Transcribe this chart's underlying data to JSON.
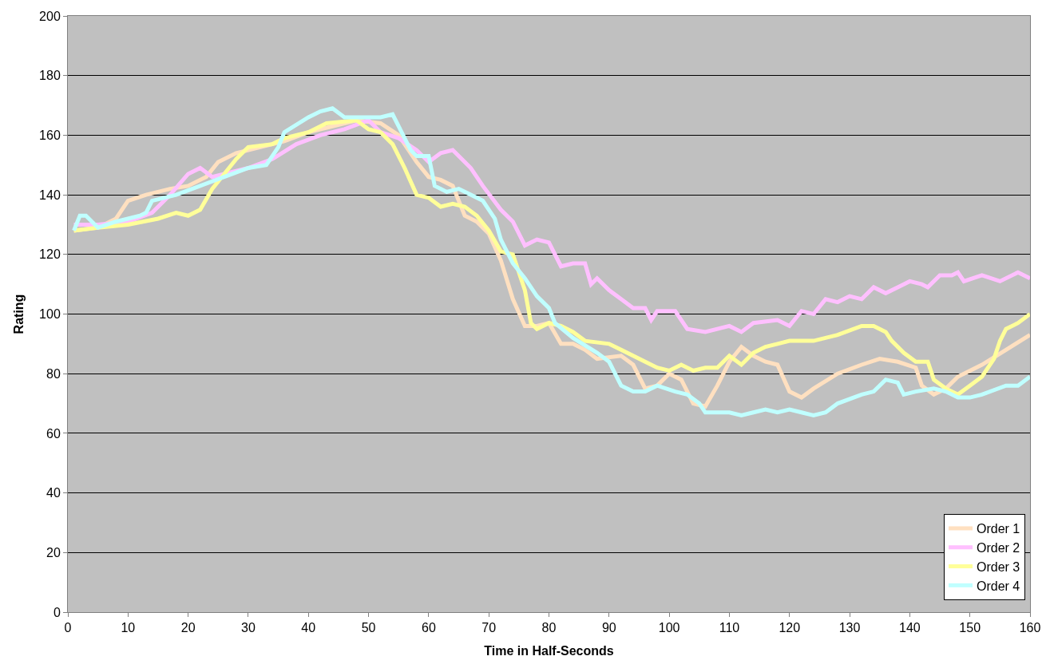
{
  "chart_data": {
    "type": "line",
    "xlabel": "Time in Half-Seconds",
    "ylabel": "Rating",
    "xlim": [
      0,
      160
    ],
    "xticks": [
      0,
      10,
      20,
      30,
      40,
      50,
      60,
      70,
      80,
      90,
      100,
      110,
      120,
      130,
      140,
      150,
      160
    ],
    "ylim": [
      0,
      200
    ],
    "yticks": [
      0,
      20,
      40,
      60,
      80,
      100,
      120,
      140,
      160,
      180,
      200
    ],
    "grid": "y",
    "legend": "bottom right",
    "marker": "none",
    "line_style": "solid",
    "series": [
      {
        "name": "Order 1",
        "color": "#ffe0c0",
        "x": [
          1,
          5,
          8,
          10,
          13,
          17,
          20,
          23,
          25,
          28,
          32,
          36,
          40,
          44,
          48,
          52,
          55,
          58,
          60,
          62,
          64,
          66,
          68,
          70,
          72,
          74,
          76,
          78,
          80,
          82,
          84,
          86,
          88,
          92,
          94,
          96,
          98,
          100,
          102,
          104,
          106,
          108,
          110,
          112,
          114,
          116,
          118,
          120,
          122,
          124,
          128,
          132,
          135,
          138,
          141,
          142,
          144,
          146,
          148,
          152,
          156,
          160
        ],
        "values": [
          128,
          129,
          132,
          138,
          140,
          142,
          143,
          146,
          151,
          154,
          156,
          158,
          161,
          163,
          165,
          164,
          160,
          151,
          146,
          145,
          143,
          133,
          131,
          127,
          118,
          105,
          96,
          96,
          97,
          90,
          90,
          88,
          85,
          86,
          83,
          75,
          76,
          80,
          78,
          70,
          69,
          76,
          84,
          89,
          86,
          84,
          83,
          74,
          72,
          75,
          80,
          83,
          85,
          84,
          82,
          76,
          73,
          75,
          79,
          83,
          88,
          93
        ]
      },
      {
        "name": "Order 2",
        "color": "#ffc0ff",
        "x": [
          1,
          5,
          10,
          14,
          17,
          20,
          22,
          24,
          26,
          30,
          34,
          38,
          42,
          46,
          50,
          52,
          55,
          58,
          60,
          62,
          64,
          66,
          67,
          69,
          72,
          74,
          76,
          78,
          80,
          82,
          84,
          86,
          87,
          88,
          90,
          92,
          94,
          96,
          97,
          98,
          101,
          103,
          106,
          110,
          112,
          114,
          118,
          120,
          122,
          124,
          126,
          128,
          130,
          132,
          134,
          136,
          138,
          140,
          142,
          143,
          145,
          147,
          148,
          149,
          152,
          155,
          158,
          160
        ],
        "values": [
          130,
          130,
          131,
          134,
          140,
          147,
          149,
          146,
          147,
          149,
          152,
          157,
          160,
          162,
          165,
          161,
          159,
          155,
          151,
          154,
          155,
          151,
          149,
          143,
          135,
          131,
          123,
          125,
          124,
          116,
          117,
          117,
          110,
          112,
          108,
          105,
          102,
          102,
          98,
          101,
          101,
          95,
          94,
          96,
          94,
          97,
          98,
          96,
          101,
          100,
          105,
          104,
          106,
          105,
          109,
          107,
          109,
          111,
          110,
          109,
          113,
          113,
          114,
          111,
          113,
          111,
          114,
          112
        ]
      },
      {
        "name": "Order 3",
        "color": "#ffff99",
        "x": [
          1,
          5,
          10,
          15,
          18,
          20,
          22,
          24,
          26,
          28,
          30,
          34,
          36,
          40,
          43,
          48,
          50,
          52,
          54,
          56,
          58,
          60,
          62,
          64,
          66,
          68,
          70,
          72,
          74,
          76,
          77,
          78,
          80,
          82,
          84,
          86,
          90,
          92,
          94,
          96,
          98,
          100,
          102,
          104,
          106,
          108,
          110,
          112,
          114,
          116,
          118,
          120,
          124,
          128,
          132,
          134,
          136,
          137,
          139,
          141,
          143,
          144,
          146,
          148,
          150,
          152,
          154,
          155,
          156,
          158,
          160
        ],
        "values": [
          128,
          129,
          130,
          132,
          134,
          133,
          135,
          142,
          147,
          152,
          156,
          157,
          159,
          161,
          164,
          165,
          162,
          161,
          157,
          149,
          140,
          139,
          136,
          137,
          136,
          133,
          128,
          121,
          120,
          108,
          97,
          95,
          97,
          96,
          94,
          91,
          90,
          88,
          86,
          84,
          82,
          81,
          83,
          81,
          82,
          82,
          86,
          83,
          87,
          89,
          90,
          91,
          91,
          93,
          96,
          96,
          94,
          91,
          87,
          84,
          84,
          78,
          75,
          73,
          76,
          79,
          85,
          91,
          95,
          97,
          100
        ]
      },
      {
        "name": "Order 4",
        "color": "#c0ffff",
        "x": [
          1,
          2,
          3,
          5,
          8,
          12,
          13,
          14,
          18,
          22,
          26,
          30,
          33,
          35,
          36,
          40,
          42,
          44,
          46,
          48,
          52,
          54,
          55,
          57,
          58,
          60,
          61,
          63,
          65,
          67,
          69,
          71,
          72,
          74,
          76,
          78,
          80,
          81,
          84,
          88,
          90,
          92,
          94,
          96,
          98,
          101,
          103,
          105,
          106,
          110,
          112,
          114,
          116,
          118,
          120,
          122,
          124,
          126,
          128,
          132,
          134,
          136,
          138,
          139,
          141,
          144,
          146,
          148,
          150,
          152,
          156,
          158,
          160
        ],
        "values": [
          128,
          133,
          133,
          129,
          131,
          133,
          134,
          138,
          140,
          143,
          146,
          149,
          150,
          156,
          161,
          166,
          168,
          169,
          166,
          166,
          166,
          167,
          163,
          155,
          153,
          153,
          143,
          141,
          142,
          140,
          138,
          132,
          125,
          117,
          112,
          106,
          102,
          97,
          92,
          87,
          84,
          76,
          74,
          74,
          76,
          74,
          73,
          70,
          67,
          67,
          66,
          67,
          68,
          67,
          68,
          67,
          66,
          67,
          70,
          73,
          74,
          78,
          77,
          73,
          74,
          75,
          74,
          72,
          72,
          73,
          76,
          76,
          79
        ]
      }
    ]
  }
}
